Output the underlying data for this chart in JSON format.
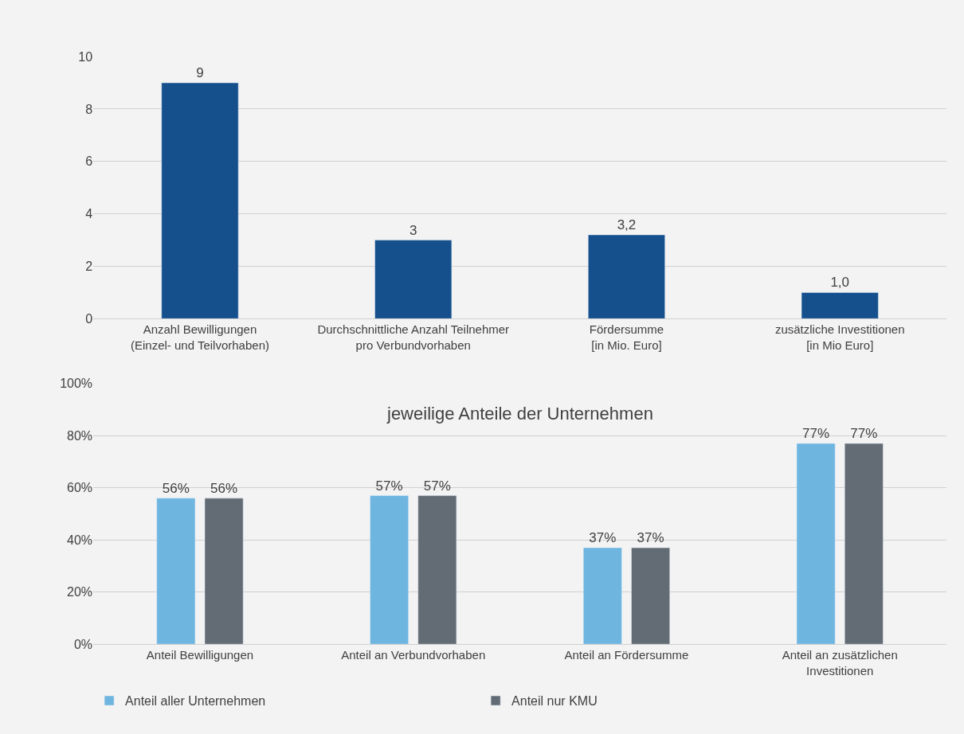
{
  "chart_data": [
    {
      "type": "bar",
      "categories": [
        "Anzahl Bewilligungen\n(Einzel- und Teilvorhaben)",
        "Durchschnittliche Anzahl Teilnehmer\npro Verbundvorhaben",
        "Fördersumme\n[in Mio. Euro]",
        "zusätzliche Investitionen\n[in Mio Euro]"
      ],
      "series": [
        {
          "color": "#15508c",
          "values": [
            9,
            3,
            3.2,
            1.0
          ],
          "value_labels": [
            "9",
            "3",
            "3,2",
            "1,0"
          ]
        }
      ],
      "ylim": [
        0,
        10
      ],
      "yticks": [
        0,
        2,
        4,
        6,
        8,
        10
      ],
      "grid": "y",
      "legend": false
    },
    {
      "type": "bar",
      "title": "jeweilige Anteile der Unternehmen",
      "categories": [
        "Anteil Bewilligungen",
        "Anteil an Verbundvorhaben",
        "Anteil an Fördersumme",
        "Anteil an zusätzlichen\nInvestitionen"
      ],
      "series": [
        {
          "name": "Anteil aller Unternehmen",
          "color": "#6eb5e0",
          "values": [
            56,
            57,
            37,
            77
          ],
          "value_labels": [
            "56%",
            "57%",
            "37%",
            "77%"
          ]
        },
        {
          "name": "Anteil nur KMU",
          "color": "#636b75",
          "values": [
            56,
            57,
            37,
            77
          ],
          "value_labels": [
            "56%",
            "57%",
            "37%",
            "77%"
          ]
        }
      ],
      "ylim": [
        0,
        100
      ],
      "yticks": [
        {
          "value": 0,
          "label": "0%"
        },
        {
          "value": 20,
          "label": "20%"
        },
        {
          "value": 40,
          "label": "40%"
        },
        {
          "value": 60,
          "label": "60%"
        },
        {
          "value": 80,
          "label": "80%"
        },
        {
          "value": 100,
          "label": "100%"
        }
      ],
      "grid": "y",
      "legend": "bottom left"
    }
  ]
}
